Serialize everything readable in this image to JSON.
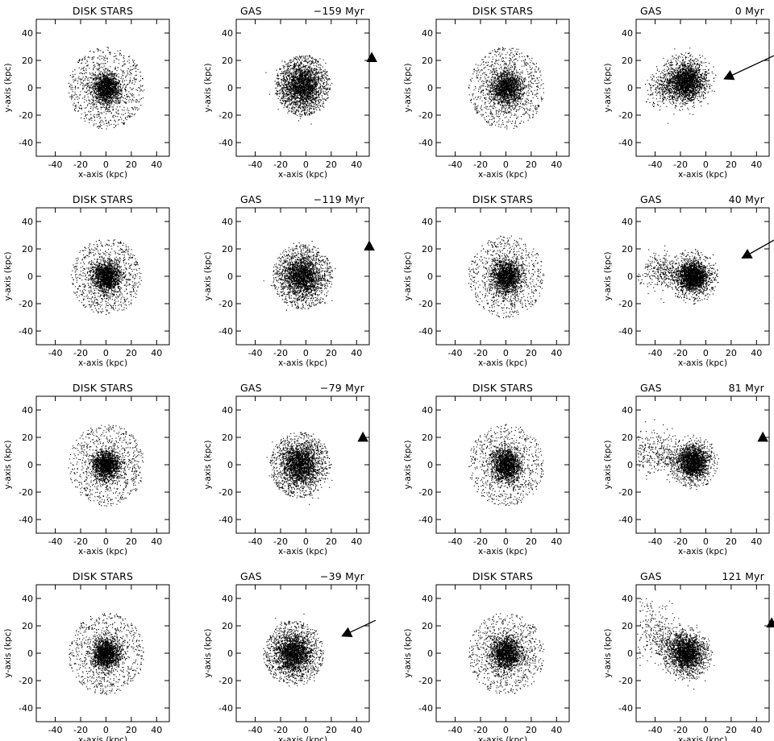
{
  "figure": {
    "star_title": "DISK STARS",
    "gas_title": "GAS",
    "xlabel": "x-axis (kpc)",
    "ylabel": "y-axis (kpc)"
  },
  "chart_data": [
    {
      "type": "scatter",
      "title": "DISK STARS",
      "xlabel": "x-axis (kpc)",
      "ylabel": "y-axis (kpc)",
      "xlim": [
        -55,
        50
      ],
      "ylim": [
        -50,
        50
      ],
      "xticks": [
        -40,
        -20,
        0,
        20,
        40
      ],
      "yticks": [
        -40,
        -20,
        0,
        20,
        40
      ],
      "distribution": {
        "center": [
          0,
          0
        ],
        "core_radius": 10,
        "halo_radius": 30
      }
    },
    {
      "type": "scatter",
      "title": "GAS",
      "time": "−159 Myr",
      "xlabel": "x-axis (kpc)",
      "ylabel": "y-axis (kpc)",
      "xlim": [
        -55,
        50
      ],
      "ylim": [
        -50,
        50
      ],
      "xticks": [
        -40,
        -20,
        0,
        20,
        40
      ],
      "yticks": [
        -40,
        -20,
        0,
        20,
        40
      ],
      "distribution": {
        "center": [
          -3,
          2
        ],
        "core_radius": 14,
        "halo_radius": 22
      },
      "marker": {
        "x": 52,
        "y": 22,
        "tail": null
      }
    },
    {
      "type": "scatter",
      "title": "DISK STARS",
      "xlabel": "x-axis (kpc)",
      "ylabel": "y-axis (kpc)",
      "xlim": [
        -55,
        50
      ],
      "ylim": [
        -50,
        50
      ],
      "xticks": [
        -40,
        -20,
        0,
        20,
        40
      ],
      "yticks": [
        -40,
        -20,
        0,
        20,
        40
      ],
      "distribution": {
        "center": [
          0,
          0
        ],
        "core_radius": 11,
        "halo_radius": 30
      }
    },
    {
      "type": "scatter",
      "title": "GAS",
      "time": "0 Myr",
      "xlabel": "x-axis (kpc)",
      "ylabel": "y-axis (kpc)",
      "xlim": [
        -55,
        50
      ],
      "ylim": [
        -50,
        50
      ],
      "xticks": [
        -40,
        -20,
        0,
        20,
        40
      ],
      "yticks": [
        -40,
        -20,
        0,
        20,
        40
      ],
      "distribution": {
        "center": [
          -15,
          5
        ],
        "core_radius": 12,
        "halo_radius": 22,
        "tail_to": [
          -40,
          -10
        ]
      },
      "marker": {
        "x": 18,
        "y": 8,
        "tail": [
          55,
          24
        ]
      }
    },
    {
      "type": "scatter",
      "title": "DISK STARS",
      "xlabel": "x-axis (kpc)",
      "ylabel": "y-axis (kpc)",
      "xlim": [
        -55,
        50
      ],
      "ylim": [
        -50,
        50
      ],
      "xticks": [
        -40,
        -20,
        0,
        20,
        40
      ],
      "yticks": [
        -40,
        -20,
        0,
        20,
        40
      ],
      "distribution": {
        "center": [
          0,
          0
        ],
        "core_radius": 10,
        "halo_radius": 28
      }
    },
    {
      "type": "scatter",
      "title": "GAS",
      "time": "−119 Myr",
      "xlabel": "x-axis (kpc)",
      "ylabel": "y-axis (kpc)",
      "xlim": [
        -55,
        50
      ],
      "ylim": [
        -50,
        50
      ],
      "xticks": [
        -40,
        -20,
        0,
        20,
        40
      ],
      "yticks": [
        -40,
        -20,
        0,
        20,
        40
      ],
      "distribution": {
        "center": [
          -3,
          0
        ],
        "core_radius": 13,
        "halo_radius": 24
      },
      "marker": {
        "x": 50,
        "y": 22,
        "tail": null
      }
    },
    {
      "type": "scatter",
      "title": "DISK STARS",
      "xlabel": "x-axis (kpc)",
      "ylabel": "y-axis (kpc)",
      "xlim": [
        -55,
        50
      ],
      "ylim": [
        -50,
        50
      ],
      "xticks": [
        -40,
        -20,
        0,
        20,
        40
      ],
      "yticks": [
        -40,
        -20,
        0,
        20,
        40
      ],
      "distribution": {
        "center": [
          0,
          0
        ],
        "core_radius": 11,
        "halo_radius": 30
      }
    },
    {
      "type": "scatter",
      "title": "GAS",
      "time": "40 Myr",
      "xlabel": "x-axis (kpc)",
      "ylabel": "y-axis (kpc)",
      "xlim": [
        -55,
        50
      ],
      "ylim": [
        -50,
        50
      ],
      "xticks": [
        -40,
        -20,
        0,
        20,
        40
      ],
      "yticks": [
        -40,
        -20,
        0,
        20,
        40
      ],
      "distribution": {
        "center": [
          -10,
          0
        ],
        "core_radius": 10,
        "halo_radius": 20,
        "tail_to": [
          -45,
          10
        ]
      },
      "marker": {
        "x": 32,
        "y": 15,
        "tail": [
          55,
          27
        ]
      }
    },
    {
      "type": "scatter",
      "title": "DISK STARS",
      "xlabel": "x-axis (kpc)",
      "ylabel": "y-axis (kpc)",
      "xlim": [
        -55,
        50
      ],
      "ylim": [
        -50,
        50
      ],
      "xticks": [
        -40,
        -20,
        0,
        20,
        40
      ],
      "yticks": [
        -40,
        -20,
        0,
        20,
        40
      ],
      "distribution": {
        "center": [
          0,
          0
        ],
        "core_radius": 10,
        "halo_radius": 30
      }
    },
    {
      "type": "scatter",
      "title": "GAS",
      "time": "−79 Myr",
      "xlabel": "x-axis (kpc)",
      "ylabel": "y-axis (kpc)",
      "xlim": [
        -55,
        50
      ],
      "ylim": [
        -50,
        50
      ],
      "xticks": [
        -40,
        -20,
        0,
        20,
        40
      ],
      "yticks": [
        -40,
        -20,
        0,
        20,
        40
      ],
      "distribution": {
        "center": [
          -5,
          0
        ],
        "core_radius": 13,
        "halo_radius": 24
      },
      "marker": {
        "x": 45,
        "y": 20,
        "tail": null
      }
    },
    {
      "type": "scatter",
      "title": "DISK STARS",
      "xlabel": "x-axis (kpc)",
      "ylabel": "y-axis (kpc)",
      "xlim": [
        -55,
        50
      ],
      "ylim": [
        -50,
        50
      ],
      "xticks": [
        -40,
        -20,
        0,
        20,
        40
      ],
      "yticks": [
        -40,
        -20,
        0,
        20,
        40
      ],
      "distribution": {
        "center": [
          0,
          0
        ],
        "core_radius": 11,
        "halo_radius": 30
      }
    },
    {
      "type": "scatter",
      "title": "GAS",
      "time": "81 Myr",
      "xlabel": "x-axis (kpc)",
      "ylabel": "y-axis (kpc)",
      "xlim": [
        -55,
        50
      ],
      "ylim": [
        -50,
        50
      ],
      "xticks": [
        -40,
        -20,
        0,
        20,
        40
      ],
      "yticks": [
        -40,
        -20,
        0,
        20,
        40
      ],
      "distribution": {
        "center": [
          -10,
          2
        ],
        "core_radius": 10,
        "halo_radius": 20,
        "tail_to": [
          -50,
          20
        ]
      },
      "marker": {
        "x": 45,
        "y": 20,
        "tail": null
      }
    },
    {
      "type": "scatter",
      "title": "DISK STARS",
      "xlabel": "x-axis (kpc)",
      "ylabel": "y-axis (kpc)",
      "xlim": [
        -55,
        50
      ],
      "ylim": [
        -50,
        50
      ],
      "xticks": [
        -40,
        -20,
        0,
        20,
        40
      ],
      "yticks": [
        -40,
        -20,
        0,
        20,
        40
      ],
      "distribution": {
        "center": [
          0,
          0
        ],
        "core_radius": 10,
        "halo_radius": 30
      }
    },
    {
      "type": "scatter",
      "title": "GAS",
      "time": "−39 Myr",
      "xlabel": "x-axis (kpc)",
      "ylabel": "y-axis (kpc)",
      "xlim": [
        -55,
        50
      ],
      "ylim": [
        -50,
        50
      ],
      "xticks": [
        -40,
        -20,
        0,
        20,
        40
      ],
      "yticks": [
        -40,
        -20,
        0,
        20,
        40
      ],
      "distribution": {
        "center": [
          -10,
          0
        ],
        "core_radius": 12,
        "halo_radius": 24
      },
      "marker": {
        "x": 32,
        "y": 14,
        "tail": [
          55,
          24
        ]
      }
    },
    {
      "type": "scatter",
      "title": "DISK STARS",
      "xlabel": "x-axis (kpc)",
      "ylabel": "y-axis (kpc)",
      "xlim": [
        -55,
        50
      ],
      "ylim": [
        -50,
        50
      ],
      "xticks": [
        -40,
        -20,
        0,
        20,
        40
      ],
      "yticks": [
        -40,
        -20,
        0,
        20,
        40
      ],
      "distribution": {
        "center": [
          0,
          0
        ],
        "core_radius": 11,
        "halo_radius": 30
      }
    },
    {
      "type": "scatter",
      "title": "GAS",
      "time": "121 Myr",
      "xlabel": "x-axis (kpc)",
      "ylabel": "y-axis (kpc)",
      "xlim": [
        -55,
        50
      ],
      "ylim": [
        -50,
        50
      ],
      "xticks": [
        -40,
        -20,
        0,
        20,
        40
      ],
      "yticks": [
        -40,
        -20,
        0,
        20,
        40
      ],
      "distribution": {
        "center": [
          -15,
          0
        ],
        "core_radius": 12,
        "halo_radius": 20,
        "tail_to": [
          -50,
          40
        ]
      },
      "marker": {
        "x": 52,
        "y": 22,
        "tail": null
      }
    }
  ]
}
